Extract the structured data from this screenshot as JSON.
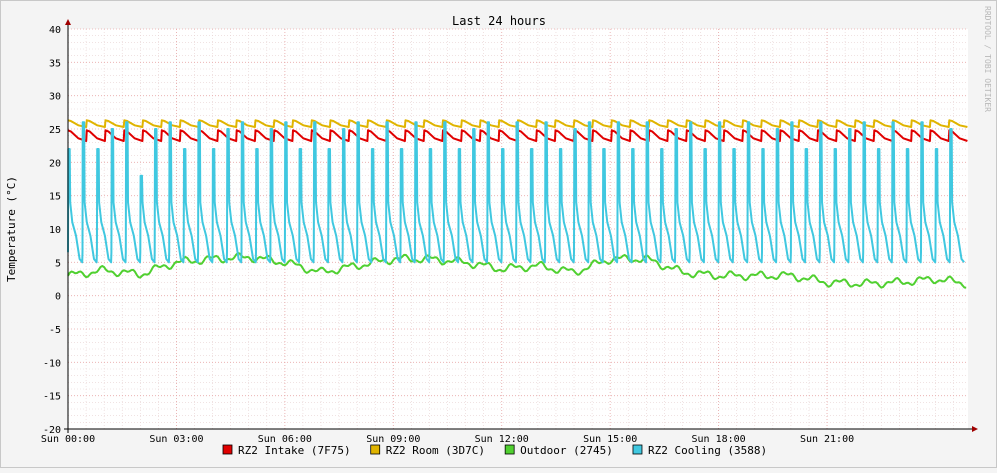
{
  "chart_data": {
    "type": "line",
    "title": "Last 24 hours",
    "ylabel": "Temperature (°C)",
    "xlabel": "",
    "watermark": "RRDTOOL / TOBI OETIKER",
    "ylim": [
      -20,
      40
    ],
    "y_ticks": [
      "40",
      "35",
      "30",
      "25",
      "20",
      "15",
      "10",
      "5",
      "0",
      "-5",
      "-10",
      "-15",
      "-20"
    ],
    "x_range_hours": [
      0,
      24.9
    ],
    "x_ticks": [
      {
        "label": "Sun 00:00",
        "hour": 0
      },
      {
        "label": "Sun 03:00",
        "hour": 3
      },
      {
        "label": "Sun 06:00",
        "hour": 6
      },
      {
        "label": "Sun 09:00",
        "hour": 9
      },
      {
        "label": "Sun 12:00",
        "hour": 12
      },
      {
        "label": "Sun 15:00",
        "hour": 15
      },
      {
        "label": "Sun 18:00",
        "hour": 18
      },
      {
        "label": "Sun 21:00",
        "hour": 21
      }
    ],
    "grid": true,
    "legend_position": "bottom",
    "series": [
      {
        "name": "RZ2 Intake (7F75)",
        "color": "#e00000",
        "pattern": "sawtooth",
        "cycles": 48,
        "min": 23.2,
        "max": 24.8
      },
      {
        "name": "RZ2 Room (3D7C)",
        "color": "#e0b400",
        "pattern": "sawtooth",
        "cycles": 48,
        "min": 25.3,
        "max": 26.3
      },
      {
        "name": "Outdoor (2745)",
        "color": "#50d030",
        "pattern": "wavy",
        "hours": [
          0,
          1,
          2,
          3,
          4,
          5,
          6,
          7,
          8,
          9,
          10,
          11,
          12,
          13,
          14,
          15,
          16,
          17,
          18,
          19,
          20,
          21,
          22,
          23,
          24,
          24.9
        ],
        "values": [
          3,
          3.8,
          3.2,
          5,
          5.5,
          5.8,
          5,
          3.5,
          4.5,
          5.5,
          5.5,
          5,
          4,
          4.5,
          3.5,
          5.5,
          5.5,
          3.5,
          3,
          3,
          3,
          2,
          1.8,
          2,
          2.5,
          1.8
        ]
      },
      {
        "name": "RZ2 Cooling (3588)",
        "color": "#40c8e0",
        "pattern": "spikes",
        "period_hours": 0.4,
        "base": 5,
        "peaks": [
          22,
          26,
          22,
          25,
          26,
          18,
          25,
          26,
          22,
          26,
          22,
          25,
          26,
          22,
          25,
          26,
          22,
          26,
          22,
          25,
          26,
          22,
          26,
          22,
          26,
          22,
          26,
          22,
          25,
          26,
          22,
          26,
          22,
          26,
          22,
          25,
          26,
          22,
          26,
          22,
          26,
          22,
          25,
          26,
          22,
          26,
          22,
          26,
          22,
          25,
          26,
          22,
          26,
          22,
          25,
          26,
          22,
          26,
          22,
          26,
          22,
          25
        ]
      }
    ]
  }
}
